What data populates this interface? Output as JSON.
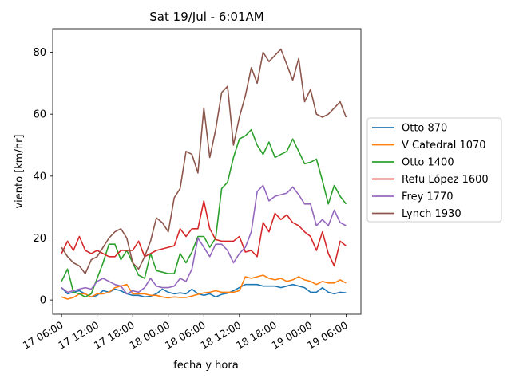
{
  "chart_data": {
    "type": "line",
    "title": "Sat 19/Jul - 6:01AM",
    "xlabel": "fecha y hora",
    "ylabel": "viento [km/hr]",
    "x_unit": "hours since 17 06:00",
    "x": [
      0,
      1,
      2,
      3,
      4,
      5,
      6,
      7,
      8,
      9,
      10,
      11,
      12,
      13,
      14,
      15,
      16,
      17,
      18,
      19,
      20,
      21,
      22,
      23,
      24,
      25,
      26,
      27,
      28,
      29,
      30,
      31,
      32,
      33,
      34,
      35,
      36,
      37,
      38,
      39,
      40,
      41,
      42,
      43,
      44,
      45,
      46,
      47,
      48
    ],
    "xlim": [
      -1.5,
      50.5
    ],
    "ylim": [
      -4.6,
      87.6
    ],
    "xticks": [
      {
        "value": 0,
        "label": "17 06:00"
      },
      {
        "value": 6,
        "label": "17 12:00"
      },
      {
        "value": 12,
        "label": "17 18:00"
      },
      {
        "value": 18,
        "label": "18 00:00"
      },
      {
        "value": 24,
        "label": "18 06:00"
      },
      {
        "value": 30,
        "label": "18 12:00"
      },
      {
        "value": 36,
        "label": "18 18:00"
      },
      {
        "value": 42,
        "label": "19 00:00"
      },
      {
        "value": 48,
        "label": "19 06:00"
      }
    ],
    "yticks": [
      0,
      20,
      40,
      60,
      80
    ],
    "grid": false,
    "legend_position": "right-outside",
    "series": [
      {
        "name": "Otto 870",
        "color": "#1f77b4",
        "values": [
          4,
          2,
          2.5,
          3,
          2,
          1,
          1.5,
          3,
          2.5,
          3.5,
          3,
          2,
          1.5,
          1.5,
          1,
          1.2,
          2,
          3.5,
          2.5,
          2,
          2.3,
          2,
          3.5,
          2,
          1.5,
          2,
          1,
          1.8,
          2.2,
          3,
          4,
          5,
          5,
          5,
          4.5,
          4.5,
          4.5,
          4,
          4.5,
          5,
          4.5,
          4,
          2.5,
          2.5,
          4,
          2.5,
          2,
          2.5,
          2.3
        ]
      },
      {
        "name": "V Catedral 1070",
        "color": "#ff7f0e",
        "values": [
          1,
          0.3,
          0.8,
          2,
          2,
          1,
          2,
          2,
          2.5,
          4,
          4.5,
          5,
          2,
          2,
          2,
          1.5,
          1.5,
          1,
          0.7,
          1,
          0.8,
          0.8,
          1.3,
          1.8,
          2.3,
          2.5,
          3,
          2.5,
          2.5,
          2.5,
          3,
          7.5,
          7,
          7.5,
          8,
          7,
          6.5,
          7,
          6,
          6.5,
          7.5,
          6.5,
          6,
          5,
          6,
          5.5,
          5.5,
          6.5,
          5.5
        ]
      },
      {
        "name": "Otto 1400",
        "color": "#2ca02c",
        "values": [
          6,
          10,
          2.5,
          2,
          1,
          2,
          7,
          12,
          18,
          18,
          13,
          16,
          12,
          8,
          7,
          15,
          9.5,
          9,
          8.5,
          8.5,
          15,
          12,
          15.5,
          20.5,
          20.5,
          17,
          20,
          36,
          38,
          46,
          52,
          53,
          55,
          50,
          47,
          51,
          46,
          47,
          48,
          52,
          48,
          44,
          44.5,
          45.5,
          38.5,
          31,
          37,
          33.5,
          31
        ]
      },
      {
        "name": "Refu López 1600",
        "color": "#d62728",
        "values": [
          15,
          19,
          16,
          20.5,
          16,
          15,
          16,
          15,
          14,
          14,
          16,
          16,
          16,
          19,
          14,
          15,
          16,
          16.5,
          17,
          17.5,
          23,
          20.5,
          23,
          23,
          32,
          23,
          19.5,
          19,
          19,
          19,
          20.5,
          15.5,
          16,
          14,
          25,
          22,
          28,
          26,
          27.5,
          25,
          24,
          22,
          20.5,
          16,
          22,
          15,
          11,
          19,
          17.5
        ]
      },
      {
        "name": "Frey 1770",
        "color": "#9467bd",
        "values": [
          4,
          2.5,
          3,
          3.5,
          4,
          3.5,
          6,
          7,
          6,
          5,
          4.5,
          2,
          3,
          2.5,
          4,
          7,
          4.5,
          4,
          4,
          4.5,
          7,
          6,
          10,
          20,
          17,
          14,
          18,
          18,
          16,
          12,
          15,
          17,
          22,
          35,
          37,
          32,
          33.5,
          34,
          34.5,
          36.5,
          34,
          31,
          31,
          24,
          26,
          24,
          29,
          25,
          24
        ]
      },
      {
        "name": "Lynch 1930",
        "color": "#8c564b",
        "values": [
          17,
          14,
          12,
          11,
          8.5,
          13,
          14,
          17,
          20,
          22,
          23,
          20,
          12,
          10,
          14,
          19,
          26.5,
          25,
          22,
          33,
          36,
          48,
          47,
          41,
          62,
          46,
          55,
          67,
          69,
          50,
          59,
          66,
          75,
          70,
          80,
          77,
          79,
          81,
          76,
          71,
          78,
          64,
          68,
          60,
          59,
          60,
          62,
          64,
          59
        ]
      }
    ]
  }
}
